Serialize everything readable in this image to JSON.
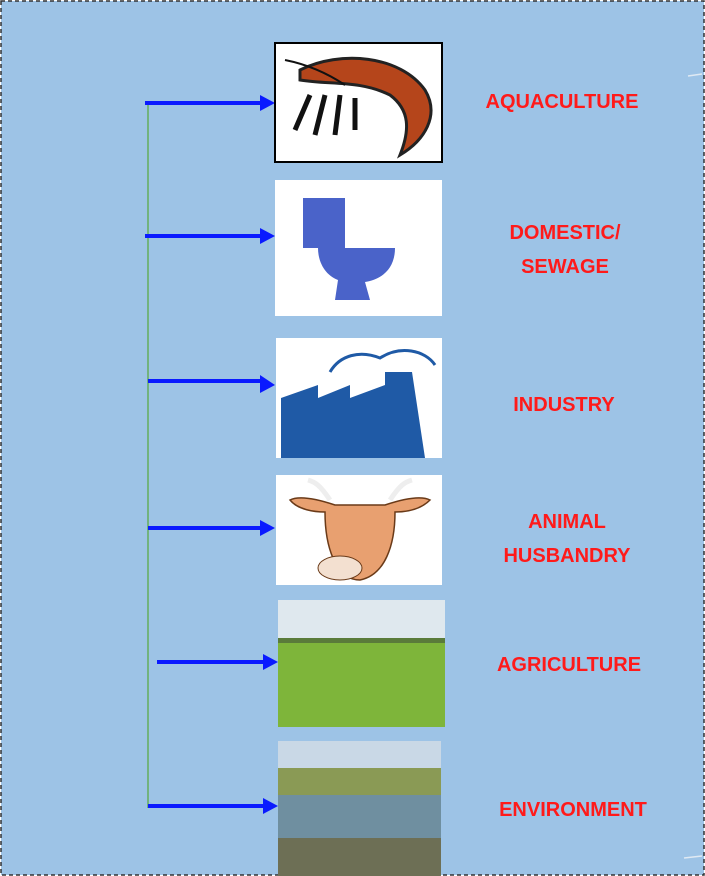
{
  "nodes": [
    {
      "label": [
        "AQUACULTURE"
      ]
    },
    {
      "label": [
        "DOMESTIC/",
        "SEWAGE"
      ]
    },
    {
      "label": [
        "INDUSTRY"
      ]
    },
    {
      "label": [
        "ANIMAL",
        "HUSBANDRY"
      ]
    },
    {
      "label": [
        "AGRICULTURE"
      ]
    },
    {
      "label": [
        "ENVIRONMENT"
      ]
    }
  ]
}
